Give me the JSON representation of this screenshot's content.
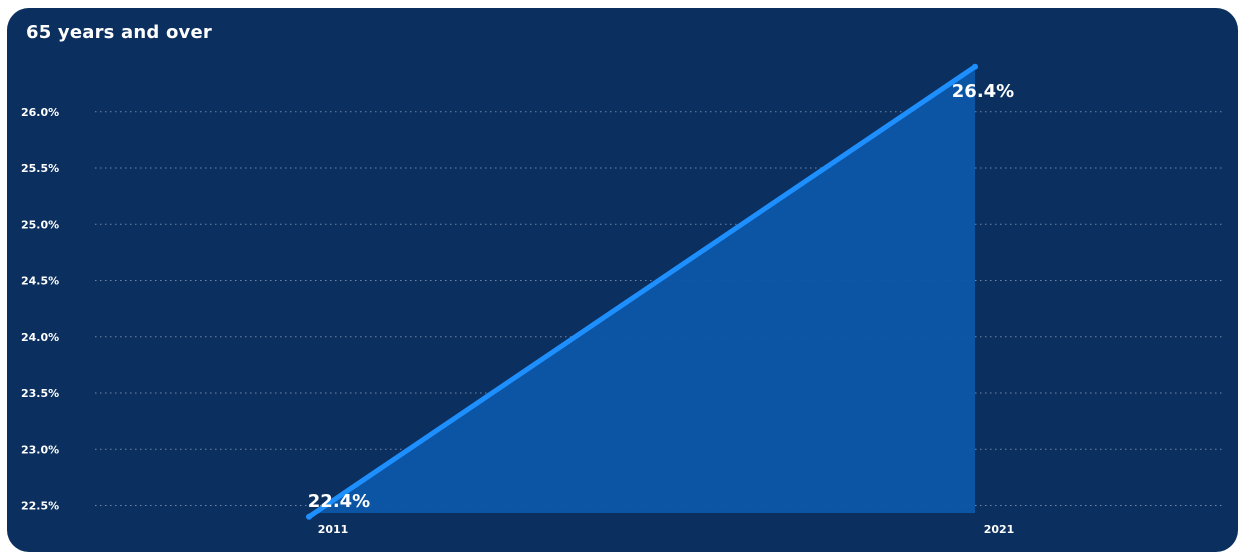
{
  "title": "65 years and over",
  "colors": {
    "background": "#0b2f5e",
    "line": "#1e8fff",
    "area": "#0d56a8",
    "grid": "#8fa4c2",
    "text": "#ffffff"
  },
  "chart_data": {
    "type": "area",
    "title": "65 years and over",
    "xlabel": "",
    "ylabel": "",
    "categories": [
      "2011",
      "2021"
    ],
    "series": [
      {
        "values": [
          22.4,
          26.4
        ]
      }
    ],
    "data_labels": [
      "22.4%",
      "26.4%"
    ],
    "yticks": [
      "22.5%",
      "23.0%",
      "23.5%",
      "24.0%",
      "24.5%",
      "25.0%",
      "25.5%",
      "26.0%"
    ],
    "ytick_values": [
      22.5,
      23.0,
      23.5,
      24.0,
      24.5,
      25.0,
      25.5,
      26.0
    ],
    "ylim": [
      22.45,
      26.55
    ],
    "grid": true,
    "legend": "none"
  }
}
